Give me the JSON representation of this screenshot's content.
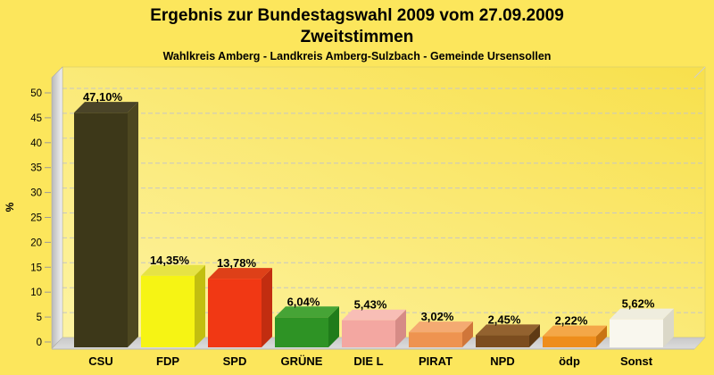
{
  "header": {
    "title": "Ergebnis zur Bundestagswahl 2009 vom 27.09.2009",
    "subtitle": "Zweitstimmen",
    "region_line": "Wahlkreis Amberg - Landkreis Amberg-Sulzbach - Gemeinde Ursensollen"
  },
  "chart_data": {
    "type": "bar",
    "projection": "3d",
    "title": "Ergebnis zur Bundestagswahl 2009 vom 27.09.2009",
    "subtitle": "Zweitstimmen",
    "annotation": "Wahlkreis Amberg - Landkreis Amberg-Sulzbach - Gemeinde Ursensollen",
    "xlabel": "",
    "ylabel": "%",
    "ylim": [
      0,
      50
    ],
    "yticks": [
      0,
      5,
      10,
      15,
      20,
      25,
      30,
      35,
      40,
      45,
      50
    ],
    "grid": "horizontal-dashed",
    "legend": "none",
    "categories": [
      "CSU",
      "FDP",
      "SPD",
      "GRÜNE",
      "DIE L",
      "PIRAT",
      "NPD",
      "ödp",
      "Sonst"
    ],
    "values": [
      47.1,
      14.35,
      13.78,
      6.04,
      5.43,
      3.02,
      2.45,
      2.22,
      5.62
    ],
    "value_labels": [
      "47,10%",
      "14,35%",
      "13,78%",
      "6,04%",
      "5,43%",
      "3,02%",
      "2,45%",
      "2,22%",
      "5,62%"
    ],
    "bar_styles": [
      {
        "category": "CSU",
        "front": "#3d3819",
        "top": "#4a4428",
        "side": "#4d4720"
      },
      {
        "category": "FDP",
        "front": "#f6f414",
        "top": "#e6e345",
        "side": "#c2bf10"
      },
      {
        "category": "SPD",
        "front": "#f13814",
        "top": "#de4018",
        "side": "#c22d10"
      },
      {
        "category": "GRÜNE",
        "front": "#2e9325",
        "top": "#46a436",
        "side": "#207c1b"
      },
      {
        "category": "DIE L",
        "front": "#f3a7a1",
        "top": "#f8beb6",
        "side": "#d68b86"
      },
      {
        "category": "PIRAT",
        "front": "#ee9350",
        "top": "#f4aa72",
        "side": "#d0763a"
      },
      {
        "category": "NPD",
        "front": "#7c4d1f",
        "top": "#93622f",
        "side": "#5f3a14"
      },
      {
        "category": "ödp",
        "front": "#ee8d1c",
        "top": "#f4a748",
        "side": "#c97413"
      },
      {
        "category": "Sonst",
        "front": "#f9f7ee",
        "top": "#efedde",
        "side": "#dbd8c8"
      }
    ]
  },
  "colors": {
    "page_background": "#fce65c",
    "wall_gradient_start": "#fdf3a2",
    "wall_gradient_end": "#f8e04c",
    "wall_border": "#d9cf6a",
    "side_wall_dark": "#b9b9b9",
    "side_wall_light": "#f2f2f2",
    "floor_dark": "#c9c9c9",
    "floor_light": "#dcdcdc",
    "floor_edge": "#b5b5b5",
    "gridline": "#c6c6c6",
    "text": "#000000"
  }
}
